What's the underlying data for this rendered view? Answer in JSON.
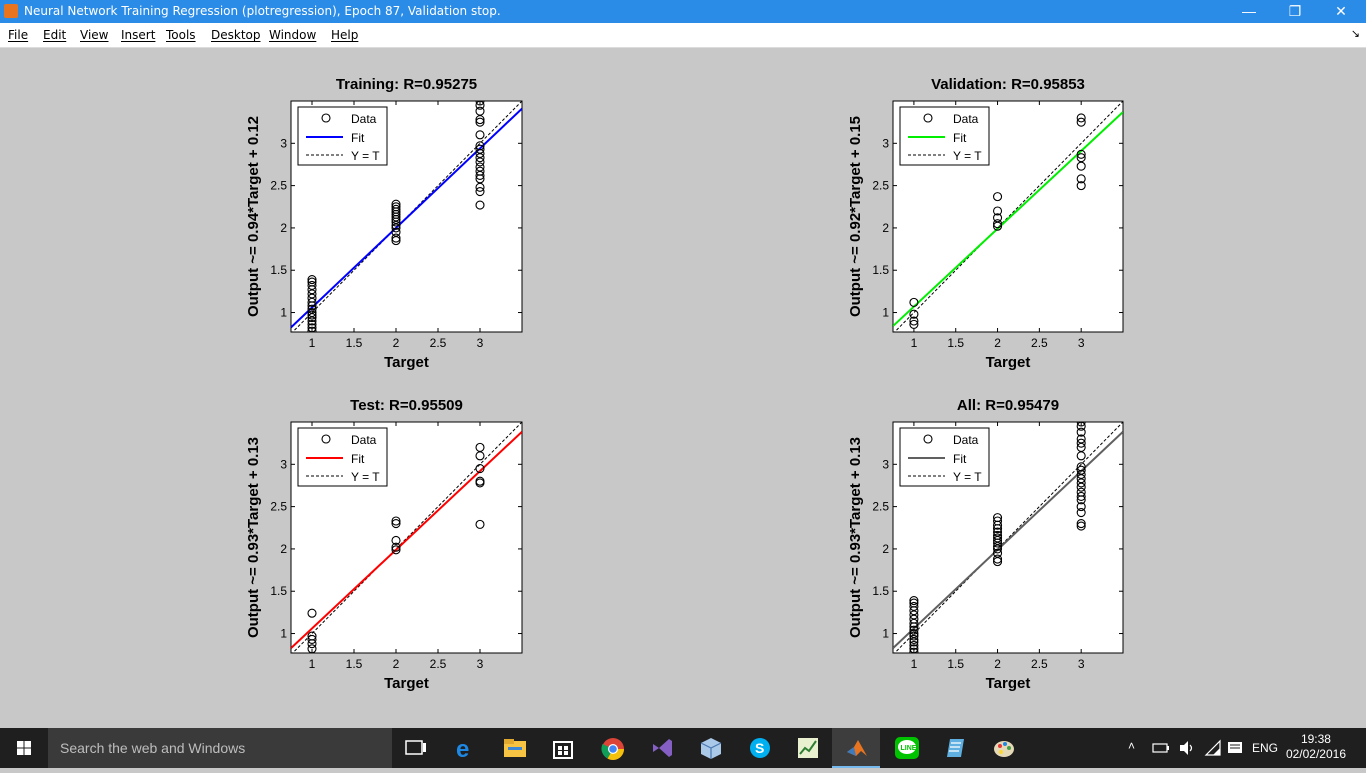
{
  "window": {
    "title": "Neural Network Training Regression (plotregression), Epoch 87, Validation stop.",
    "minimize_glyph": "—",
    "restore_glyph": "❐",
    "close_glyph": "✕"
  },
  "menu": {
    "items": [
      "File",
      "Edit",
      "View",
      "Insert",
      "Tools",
      "Desktop",
      "Window",
      "Help"
    ],
    "dock_glyph": "↘"
  },
  "legend_labels": {
    "data": "Data",
    "fit": "Fit",
    "yt": "Y = T"
  },
  "chart_data": [
    {
      "type": "scatter",
      "title": "Training: R=0.95275",
      "xlabel": "Target",
      "ylabel": "Output ~= 0.94*Target + 0.12",
      "xlim": [
        0.75,
        3.5
      ],
      "ylim": [
        0.77,
        3.5
      ],
      "xticks": [
        1,
        1.5,
        2,
        2.5,
        3
      ],
      "yticks": [
        1,
        1.5,
        2,
        2.5,
        3
      ],
      "xtick_labels": [
        "1",
        "1.5",
        "2",
        "2.5",
        "3"
      ],
      "ytick_labels": [
        "1",
        "1.5",
        "2",
        "2.5",
        "3"
      ],
      "fit": {
        "slope": 0.94,
        "intercept": 0.12,
        "color": "#0000ff"
      },
      "points": [
        [
          1,
          0.78
        ],
        [
          1,
          0.82
        ],
        [
          1,
          0.86
        ],
        [
          1,
          0.9
        ],
        [
          1,
          0.94
        ],
        [
          1,
          0.97
        ],
        [
          1,
          1.0
        ],
        [
          1,
          1.04
        ],
        [
          1,
          1.08
        ],
        [
          1,
          1.12
        ],
        [
          1,
          1.17
        ],
        [
          1,
          1.22
        ],
        [
          1,
          1.27
        ],
        [
          1,
          1.32
        ],
        [
          1,
          1.36
        ],
        [
          1,
          1.39
        ],
        [
          2,
          1.85
        ],
        [
          2,
          1.88
        ],
        [
          2,
          1.95
        ],
        [
          2,
          2.0
        ],
        [
          2,
          2.03
        ],
        [
          2,
          2.07
        ],
        [
          2,
          2.1
        ],
        [
          2,
          2.13
        ],
        [
          2,
          2.16
        ],
        [
          2,
          2.19
        ],
        [
          2,
          2.22
        ],
        [
          2,
          2.25
        ],
        [
          2,
          2.28
        ],
        [
          3,
          2.27
        ],
        [
          3,
          2.43
        ],
        [
          3,
          2.48
        ],
        [
          3,
          2.58
        ],
        [
          3,
          2.62
        ],
        [
          3,
          2.67
        ],
        [
          3,
          2.72
        ],
        [
          3,
          2.78
        ],
        [
          3,
          2.83
        ],
        [
          3,
          2.88
        ],
        [
          3,
          2.93
        ],
        [
          3,
          2.97
        ],
        [
          3,
          3.1
        ],
        [
          3,
          3.25
        ],
        [
          3,
          3.28
        ],
        [
          3,
          3.38
        ],
        [
          3,
          3.45
        ],
        [
          3,
          3.5
        ]
      ]
    },
    {
      "type": "scatter",
      "title": "Validation: R=0.95853",
      "xlabel": "Target",
      "ylabel": "Output ~= 0.92*Target + 0.15",
      "xlim": [
        0.75,
        3.5
      ],
      "ylim": [
        0.77,
        3.5
      ],
      "xticks": [
        1,
        1.5,
        2,
        2.5,
        3
      ],
      "yticks": [
        1,
        1.5,
        2,
        2.5,
        3
      ],
      "xtick_labels": [
        "1",
        "1.5",
        "2",
        "2.5",
        "3"
      ],
      "ytick_labels": [
        "1",
        "1.5",
        "2",
        "2.5",
        "3"
      ],
      "fit": {
        "slope": 0.92,
        "intercept": 0.15,
        "color": "#00ee00"
      },
      "points": [
        [
          1,
          0.86
        ],
        [
          1,
          0.9
        ],
        [
          1,
          0.98
        ],
        [
          1,
          1.12
        ],
        [
          2,
          2.02
        ],
        [
          2,
          2.05
        ],
        [
          2,
          2.12
        ],
        [
          2,
          2.2
        ],
        [
          2,
          2.37
        ],
        [
          3,
          2.5
        ],
        [
          3,
          2.58
        ],
        [
          3,
          2.73
        ],
        [
          3,
          2.83
        ],
        [
          3,
          2.87
        ],
        [
          3,
          3.25
        ],
        [
          3,
          3.3
        ]
      ]
    },
    {
      "type": "scatter",
      "title": "Test: R=0.95509",
      "xlabel": "Target",
      "ylabel": "Output ~= 0.93*Target + 0.13",
      "xlim": [
        0.75,
        3.5
      ],
      "ylim": [
        0.77,
        3.5
      ],
      "xticks": [
        1,
        1.5,
        2,
        2.5,
        3
      ],
      "yticks": [
        1,
        1.5,
        2,
        2.5,
        3
      ],
      "xtick_labels": [
        "1",
        "1.5",
        "2",
        "2.5",
        "3"
      ],
      "ytick_labels": [
        "1",
        "1.5",
        "2",
        "2.5",
        "3"
      ],
      "fit": {
        "slope": 0.93,
        "intercept": 0.13,
        "color": "#ff0000"
      },
      "points": [
        [
          1,
          0.82
        ],
        [
          1,
          0.88
        ],
        [
          1,
          0.93
        ],
        [
          1,
          0.97
        ],
        [
          1,
          1.24
        ],
        [
          2,
          1.99
        ],
        [
          2,
          2.02
        ],
        [
          2,
          2.1
        ],
        [
          2,
          2.3
        ],
        [
          2,
          2.33
        ],
        [
          3,
          2.29
        ],
        [
          3,
          2.78
        ],
        [
          3,
          2.8
        ],
        [
          3,
          2.95
        ],
        [
          3,
          3.1
        ],
        [
          3,
          3.2
        ]
      ]
    },
    {
      "type": "scatter",
      "title": "All: R=0.95479",
      "xlabel": "Target",
      "ylabel": "Output ~= 0.93*Target + 0.13",
      "xlim": [
        0.75,
        3.5
      ],
      "ylim": [
        0.77,
        3.5
      ],
      "xticks": [
        1,
        1.5,
        2,
        2.5,
        3
      ],
      "yticks": [
        1,
        1.5,
        2,
        2.5,
        3
      ],
      "xtick_labels": [
        "1",
        "1.5",
        "2",
        "2.5",
        "3"
      ],
      "ytick_labels": [
        "1",
        "1.5",
        "2",
        "2.5",
        "3"
      ],
      "fit": {
        "slope": 0.93,
        "intercept": 0.13,
        "color": "#606060"
      },
      "points": [
        [
          1,
          0.78
        ],
        [
          1,
          0.82
        ],
        [
          1,
          0.86
        ],
        [
          1,
          0.9
        ],
        [
          1,
          0.93
        ],
        [
          1,
          0.97
        ],
        [
          1,
          1.0
        ],
        [
          1,
          1.04
        ],
        [
          1,
          1.08
        ],
        [
          1,
          1.12
        ],
        [
          1,
          1.17
        ],
        [
          1,
          1.22
        ],
        [
          1,
          1.27
        ],
        [
          1,
          1.32
        ],
        [
          1,
          1.36
        ],
        [
          1,
          1.39
        ],
        [
          2,
          1.85
        ],
        [
          2,
          1.88
        ],
        [
          2,
          1.95
        ],
        [
          2,
          2.0
        ],
        [
          2,
          2.03
        ],
        [
          2,
          2.07
        ],
        [
          2,
          2.1
        ],
        [
          2,
          2.13
        ],
        [
          2,
          2.16
        ],
        [
          2,
          2.2
        ],
        [
          2,
          2.24
        ],
        [
          2,
          2.28
        ],
        [
          2,
          2.33
        ],
        [
          2,
          2.37
        ],
        [
          3,
          2.27
        ],
        [
          3,
          2.3
        ],
        [
          3,
          2.43
        ],
        [
          3,
          2.5
        ],
        [
          3,
          2.58
        ],
        [
          3,
          2.62
        ],
        [
          3,
          2.67
        ],
        [
          3,
          2.73
        ],
        [
          3,
          2.78
        ],
        [
          3,
          2.83
        ],
        [
          3,
          2.88
        ],
        [
          3,
          2.93
        ],
        [
          3,
          2.97
        ],
        [
          3,
          3.1
        ],
        [
          3,
          3.2
        ],
        [
          3,
          3.25
        ],
        [
          3,
          3.3
        ],
        [
          3,
          3.38
        ],
        [
          3,
          3.45
        ],
        [
          3,
          3.5
        ]
      ]
    }
  ],
  "taskbar": {
    "search_placeholder": "Search the web and Windows",
    "apps": [
      "task-view",
      "edge",
      "file-explorer",
      "store",
      "chrome",
      "visual-studio",
      "virtualbox",
      "skype",
      "sigmaplot",
      "matlab",
      "line",
      "notepad",
      "paint"
    ],
    "language": "ENG",
    "time": "19:38",
    "date": "02/02/2016"
  }
}
